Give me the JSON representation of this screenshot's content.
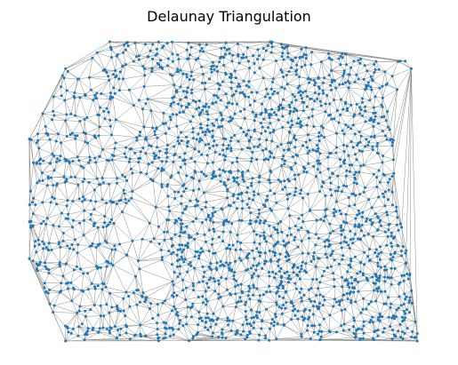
{
  "chart_data": {
    "type": "scatter",
    "title": "Delaunay Triangulation",
    "xlabel": "",
    "ylabel": "",
    "axes_visible": false,
    "grid": false,
    "legend": "none",
    "series": [
      {
        "role": "points",
        "color": "#1f77b4",
        "point_count_approx": 9000,
        "hull_outline": [
          [
            -1.0,
            0.35
          ],
          [
            -0.82,
            0.82
          ],
          [
            -0.6,
            1.0
          ],
          [
            0.2,
            1.0
          ],
          [
            0.87,
            0.87
          ],
          [
            0.78,
            0.72
          ],
          [
            0.93,
            -0.95
          ],
          [
            0.93,
            -1.0
          ],
          [
            -0.82,
            -1.0
          ],
          [
            -1.0,
            -0.45
          ]
        ],
        "outlier_points": [
          [
            0.9,
            0.82
          ],
          [
            0.83,
            0.68
          ],
          [
            0.54,
            0.46
          ],
          [
            0.6,
            0.42
          ]
        ],
        "inner_void": [
          [
            -0.45,
            0.1
          ],
          [
            -0.35,
            0.05
          ],
          [
            -0.3,
            -0.1
          ],
          [
            -0.33,
            -0.25
          ],
          [
            -0.45,
            -0.32
          ],
          [
            -0.5,
            -0.1
          ]
        ],
        "left_band_stripes": 14
      },
      {
        "role": "triangulation edges",
        "color": "#808080"
      }
    ]
  }
}
